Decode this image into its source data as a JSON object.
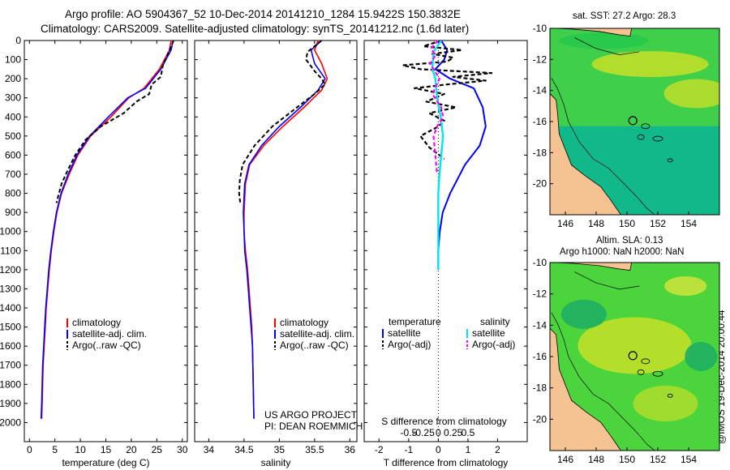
{
  "header": {
    "line1": "Argo profile: AO 5904367_52 10-Dec-2014 20141210_1284 15.9422S 150.3832E",
    "line2": "Climatology: CARS2009. Satellite-adjusted climatology: synTS_20141212.nc (1.6d later)"
  },
  "project": {
    "line1": "US ARGO PROJECT",
    "line2": "PI: DEAN ROEMMICH"
  },
  "credit": "@IMOS 19-Dec-2014 20:00:44",
  "maps": [
    {
      "title1": "sat. SST: 27.2  Argo: 28.3",
      "title2": ""
    },
    {
      "title1": "Altim. SLA: 0.13",
      "title2": "Argo h1000: NaN h2000: NaN"
    }
  ],
  "colors": {
    "climatology": "#ff0000",
    "satellite": "#0000ff",
    "argo": "#000000",
    "salinity_satellite": "#00e5ee",
    "salinity_argo": "#ff00ff",
    "land": "#f5c291",
    "ocean_deep": "#11b98a",
    "ocean_mid": "#3fcf4a",
    "ocean_high": "#c5e028"
  },
  "chart_data": [
    {
      "type": "line",
      "name": "temperature-profile",
      "xlabel": "temperature (deg C)",
      "ylabel": "",
      "xlim": [
        -1,
        31
      ],
      "ylim": [
        2100,
        0
      ],
      "xticks": [
        0,
        5,
        10,
        15,
        20,
        25,
        30
      ],
      "yticks": [
        0,
        100,
        200,
        300,
        400,
        500,
        600,
        700,
        800,
        900,
        1000,
        1100,
        1200,
        1300,
        1400,
        1500,
        1600,
        1700,
        1800,
        1900,
        2000
      ],
      "legend": [
        "climatology",
        "satellite-adj. clim.",
        "Argo(..raw -QC)"
      ],
      "legend_position": "lower-center",
      "series": [
        {
          "name": "climatology",
          "x": [
            27.8,
            27.5,
            25.5,
            22.5,
            19.5,
            16.0,
            12.0,
            9.5,
            7.8,
            6.3,
            5.4,
            4.8,
            4.3,
            3.9,
            3.6,
            3.3,
            3.1,
            2.9,
            2.7,
            2.6,
            2.5,
            2.4
          ],
          "y": [
            0,
            50,
            150,
            250,
            300,
            400,
            500,
            600,
            700,
            800,
            900,
            1000,
            1100,
            1200,
            1300,
            1400,
            1500,
            1600,
            1700,
            1800,
            1900,
            1980
          ]
        },
        {
          "name": "satellite-adj. clim.",
          "x": [
            28.2,
            27.8,
            25.8,
            22.8,
            19.3,
            15.5,
            11.8,
            9.3,
            7.6,
            6.2,
            5.3,
            4.7,
            4.2,
            3.8,
            3.5,
            3.2,
            3.0,
            2.8,
            2.6,
            2.5,
            2.4,
            2.3
          ],
          "y": [
            0,
            50,
            150,
            250,
            300,
            400,
            500,
            600,
            700,
            800,
            900,
            1000,
            1100,
            1200,
            1300,
            1400,
            1500,
            1600,
            1700,
            1800,
            1900,
            1980
          ]
        },
        {
          "name": "Argo(..raw -QC)",
          "x": [
            28.3,
            27.0,
            26.2,
            25.8,
            24.0,
            23.5,
            21.0,
            18.5,
            14.0,
            11.0,
            9.0,
            7.5,
            6.3,
            5.8,
            5.3
          ],
          "y": [
            0,
            80,
            130,
            190,
            230,
            280,
            320,
            380,
            450,
            520,
            600,
            680,
            750,
            800,
            850
          ]
        }
      ]
    },
    {
      "type": "line",
      "name": "salinity-profile",
      "xlabel": "salinity",
      "ylabel": "",
      "xlim": [
        33.8,
        36.1
      ],
      "ylim": [
        2100,
        0
      ],
      "xticks": [
        34,
        34.5,
        35,
        35.5,
        36
      ],
      "legend": [
        "climatology",
        "satellite-adj. clim.",
        "Argo(..raw -QC)"
      ],
      "legend_position": "lower-center",
      "series": [
        {
          "name": "climatology",
          "x": [
            35.55,
            35.5,
            35.6,
            35.68,
            35.6,
            35.35,
            35.05,
            34.78,
            34.58,
            34.52,
            34.5,
            34.5,
            34.52,
            34.55,
            34.57,
            34.59,
            34.61,
            34.62,
            34.63,
            34.64
          ],
          "y": [
            0,
            50,
            120,
            200,
            260,
            350,
            450,
            550,
            650,
            750,
            900,
            1000,
            1100,
            1200,
            1300,
            1400,
            1500,
            1600,
            1800,
            1980
          ]
        },
        {
          "name": "satellite-adj. clim.",
          "x": [
            35.6,
            35.45,
            35.5,
            35.65,
            35.55,
            35.3,
            35.0,
            34.75,
            34.57,
            34.51,
            34.49,
            34.5,
            34.51,
            34.54,
            34.56,
            34.58,
            34.6,
            34.62,
            34.63,
            34.64
          ],
          "y": [
            0,
            50,
            120,
            200,
            260,
            350,
            450,
            550,
            650,
            750,
            900,
            1000,
            1100,
            1200,
            1300,
            1400,
            1500,
            1600,
            1800,
            1980
          ]
        },
        {
          "name": "Argo(..raw -QC)",
          "x": [
            35.6,
            35.4,
            35.38,
            35.5,
            35.6,
            35.65,
            35.5,
            35.25,
            34.9,
            34.65,
            34.48,
            34.44,
            34.43,
            34.45
          ],
          "y": [
            0,
            60,
            100,
            160,
            200,
            230,
            280,
            350,
            450,
            550,
            650,
            730,
            800,
            860
          ]
        }
      ]
    },
    {
      "type": "line",
      "name": "difference-profile",
      "xlabel": "T difference from climatology",
      "xlabel_top": "S difference from climatology",
      "xlim": [
        -2.5,
        3
      ],
      "ylim": [
        2100,
        0
      ],
      "xticks": [
        -2,
        -1,
        0,
        1,
        2
      ],
      "xticks_top": [
        -0.5,
        -0.25,
        0,
        0.25,
        0.5
      ],
      "xticks_top_labels": [
        "-0.5",
        "-0.25",
        "0",
        "0.25",
        "0.5"
      ],
      "legend": [
        "temperature",
        "satellite",
        "Argo(-adj)",
        "salinity",
        "satellite",
        "Argo(-adj)"
      ],
      "legend_position": "lower-center",
      "series": [
        {
          "name": "satellite",
          "x": [
            0.1,
            0.3,
            0.2,
            -0.1,
            0.4,
            1.2,
            1.5,
            1.6,
            1.4,
            0.9,
            0.4,
            0.15,
            0.05,
            0.0,
            0.0
          ],
          "y": [
            0,
            50,
            100,
            150,
            200,
            250,
            350,
            450,
            550,
            650,
            800,
            900,
            1000,
            1100,
            1200
          ]
        },
        {
          "name": "Argo(-adj)",
          "x": [
            0.1,
            -0.5,
            0.8,
            -0.2,
            0.5,
            0.3,
            -1.2,
            -0.6,
            1.8,
            0.5,
            1.6,
            0.3,
            -0.8,
            0.2,
            -0.4,
            0.6,
            -0.3,
            0.2,
            0.0,
            -0.6,
            -0.3,
            0.2
          ],
          "y": [
            0,
            30,
            50,
            70,
            90,
            110,
            130,
            150,
            170,
            190,
            210,
            230,
            250,
            280,
            320,
            350,
            380,
            420,
            450,
            500,
            560,
            620
          ]
        },
        {
          "name": "salinity satellite",
          "x": [
            0.05,
            -0.08,
            -0.1,
            -0.05,
            -0.02,
            0.04,
            0.08,
            0.05,
            0.02,
            0.0,
            0.0,
            0.0
          ],
          "y": [
            0,
            60,
            150,
            200,
            300,
            400,
            500,
            600,
            700,
            800,
            1000,
            1200
          ]
        },
        {
          "name": "salinity Argo(-adj)",
          "x": [
            0.0,
            -0.12,
            -0.05,
            -0.14,
            0.02,
            -0.1,
            0.05,
            0.08,
            -0.02,
            -0.08,
            -0.05,
            -0.02
          ],
          "y": [
            0,
            40,
            80,
            120,
            200,
            280,
            350,
            400,
            450,
            500,
            600,
            700
          ]
        }
      ]
    },
    {
      "type": "heatmap",
      "name": "sst-map",
      "title": "sat. SST: 27.2  Argo: 28.3",
      "xlim": [
        145,
        156
      ],
      "ylim": [
        -22,
        -10
      ],
      "xticks": [
        146,
        148,
        150,
        152,
        154
      ],
      "yticks": [
        -10,
        -12,
        -14,
        -16,
        -18,
        -20
      ],
      "marker": {
        "lon": 150.38,
        "lat": -15.94
      }
    },
    {
      "type": "heatmap",
      "name": "sla-map",
      "title": "Altim. SLA: 0.13  Argo h1000: NaN h2000: NaN",
      "xlim": [
        145,
        156
      ],
      "ylim": [
        -22,
        -10
      ],
      "xticks": [
        146,
        148,
        150,
        152,
        154
      ],
      "yticks": [
        -10,
        -12,
        -14,
        -16,
        -18,
        -20
      ],
      "marker": {
        "lon": 150.38,
        "lat": -15.94
      }
    }
  ]
}
